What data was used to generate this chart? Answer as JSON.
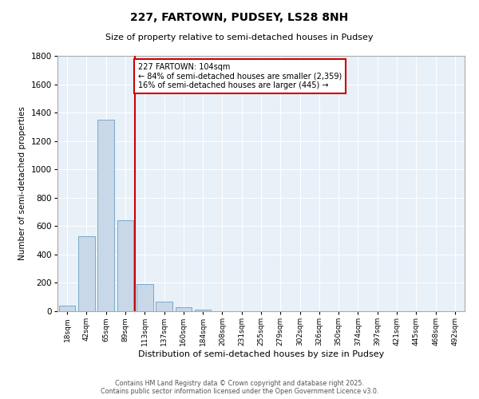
{
  "title": "227, FARTOWN, PUDSEY, LS28 8NH",
  "subtitle": "Size of property relative to semi-detached houses in Pudsey",
  "xlabel": "Distribution of semi-detached houses by size in Pudsey",
  "ylabel": "Number of semi-detached properties",
  "bar_color": "#c8d8e8",
  "bar_edge_color": "#7aaac8",
  "background_color": "#e8f0f8",
  "categories": [
    "18sqm",
    "42sqm",
    "65sqm",
    "89sqm",
    "113sqm",
    "137sqm",
    "160sqm",
    "184sqm",
    "208sqm",
    "231sqm",
    "255sqm",
    "279sqm",
    "302sqm",
    "326sqm",
    "350sqm",
    "374sqm",
    "397sqm",
    "421sqm",
    "445sqm",
    "468sqm",
    "492sqm"
  ],
  "values": [
    40,
    530,
    1350,
    640,
    190,
    65,
    30,
    10,
    0,
    0,
    0,
    0,
    0,
    0,
    0,
    0,
    0,
    0,
    0,
    0,
    0
  ],
  "ylim": [
    0,
    1800
  ],
  "yticks": [
    0,
    200,
    400,
    600,
    800,
    1000,
    1200,
    1400,
    1600,
    1800
  ],
  "vline_x": 3.5,
  "vline_color": "#cc0000",
  "annotation_title": "227 FARTOWN: 104sqm",
  "annotation_line1": "← 84% of semi-detached houses are smaller (2,359)",
  "annotation_line2": "16% of semi-detached houses are larger (445) →",
  "annotation_box_color": "#cc0000",
  "footer_line1": "Contains HM Land Registry data © Crown copyright and database right 2025.",
  "footer_line2": "Contains public sector information licensed under the Open Government Licence v3.0."
}
